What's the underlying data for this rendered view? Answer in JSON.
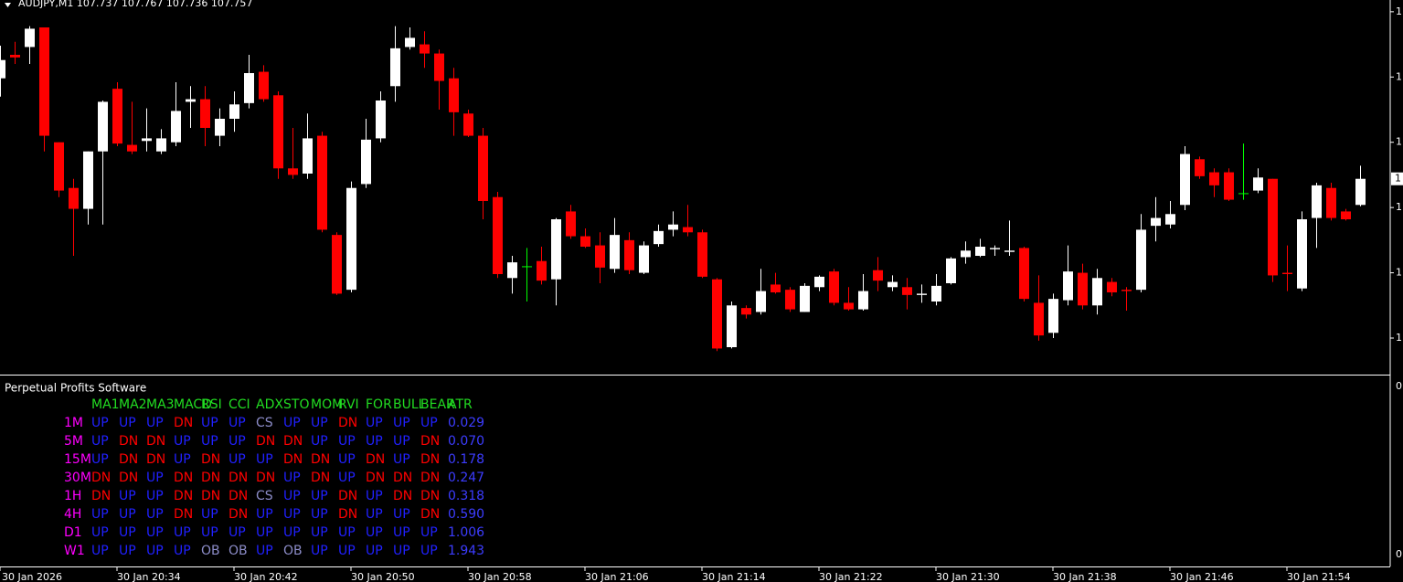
{
  "chart_data": {
    "type": "candlestick",
    "title": "AUDJPY,M1  107.737 107.767 107.736 107.757",
    "categories": [
      "30 Jan 2026",
      null,
      null,
      null,
      null,
      null,
      null,
      null,
      "30 Jan 20:34",
      null,
      null,
      null,
      null,
      null,
      null,
      null,
      "30 Jan 20:42",
      null,
      null,
      null,
      null,
      null,
      null,
      null,
      "30 Jan 20:50",
      null,
      null,
      null,
      null,
      null,
      null,
      null,
      "30 Jan 20:58",
      null,
      null,
      null,
      null,
      null,
      null,
      null,
      "30 Jan 21:06",
      null,
      null,
      null,
      null,
      null,
      null,
      null,
      "30 Jan 21:14",
      null,
      null,
      null,
      null,
      null,
      null,
      null,
      "30 Jan 21:22",
      null,
      null,
      null,
      null,
      null,
      null,
      null,
      "30 Jan 21:30",
      null,
      null,
      null,
      null,
      null,
      null,
      null,
      "30 Jan 21:38",
      null,
      null,
      null,
      null,
      null,
      null,
      null,
      "30 Jan 21:46",
      null,
      null,
      null,
      null,
      null,
      null,
      null,
      "30 Jan 21:54",
      null,
      null,
      null,
      null,
      null
    ],
    "open": [
      107.834,
      107.852,
      107.858,
      107.873,
      107.785,
      107.75,
      107.734,
      107.778,
      107.826,
      107.783,
      107.786,
      107.778,
      107.785,
      107.816,
      107.818,
      107.79,
      107.803,
      107.815,
      107.839,
      107.821,
      107.765,
      107.761,
      107.79,
      107.714,
      107.672,
      107.753,
      107.788,
      107.828,
      107.858,
      107.86,
      107.853,
      107.834,
      107.807,
      107.79,
      107.743,
      107.681,
      107.69,
      107.694,
      107.68,
      107.732,
      107.713,
      107.706,
      107.688,
      107.71,
      107.685,
      107.707,
      107.718,
      107.72,
      107.716,
      107.68,
      107.628,
      107.658,
      107.655,
      107.676,
      107.672,
      107.655,
      107.674,
      107.686,
      107.662,
      107.657,
      107.687,
      107.674,
      107.674,
      107.668,
      107.663,
      107.677,
      107.697,
      107.698,
      107.703,
      107.701,
      107.704,
      107.662,
      107.639,
      107.664,
      107.685,
      107.66,
      107.678,
      107.672,
      107.672,
      107.721,
      107.722,
      107.737,
      107.772,
      107.762,
      107.762,
      107.746,
      107.748,
      107.757,
      107.685,
      107.673,
      107.727,
      107.75,
      107.732,
      107.737
    ],
    "high": [
      107.859,
      107.862,
      107.874,
      107.873,
      107.785,
      107.757,
      107.778,
      107.817,
      107.831,
      107.816,
      107.811,
      107.795,
      107.831,
      107.828,
      107.828,
      107.811,
      107.824,
      107.852,
      107.844,
      107.824,
      107.796,
      107.807,
      107.793,
      107.716,
      107.755,
      107.803,
      107.824,
      107.874,
      107.873,
      107.87,
      107.856,
      107.842,
      107.81,
      107.796,
      107.747,
      107.698,
      107.704,
      107.705,
      107.727,
      107.737,
      107.719,
      107.716,
      107.727,
      107.716,
      107.709,
      107.722,
      107.732,
      107.737,
      107.718,
      107.681,
      107.663,
      107.66,
      107.688,
      107.685,
      107.674,
      107.677,
      107.683,
      107.688,
      107.674,
      107.684,
      107.697,
      107.683,
      107.681,
      107.676,
      107.684,
      107.697,
      107.709,
      107.711,
      107.706,
      107.725,
      107.705,
      107.683,
      107.669,
      107.706,
      107.692,
      107.688,
      107.681,
      107.674,
      107.73,
      107.743,
      107.74,
      107.782,
      107.774,
      107.765,
      107.765,
      107.784,
      107.765,
      107.757,
      107.706,
      107.732,
      107.754,
      107.754,
      107.734,
      107.767
    ],
    "low": [
      107.82,
      107.845,
      107.845,
      107.778,
      107.743,
      107.698,
      107.722,
      107.722,
      107.782,
      107.776,
      107.778,
      107.776,
      107.782,
      107.796,
      107.782,
      107.782,
      107.793,
      107.811,
      107.816,
      107.757,
      107.757,
      107.757,
      107.716,
      107.668,
      107.67,
      107.75,
      107.785,
      107.816,
      107.856,
      107.842,
      107.81,
      107.79,
      107.789,
      107.726,
      107.681,
      107.669,
      107.663,
      107.676,
      107.66,
      107.711,
      107.704,
      107.677,
      107.685,
      107.684,
      107.684,
      107.705,
      107.713,
      107.713,
      107.681,
      107.625,
      107.627,
      107.65,
      107.653,
      107.669,
      107.655,
      107.655,
      107.671,
      107.66,
      107.656,
      107.656,
      107.671,
      107.671,
      107.657,
      107.662,
      107.66,
      107.676,
      107.692,
      107.697,
      107.698,
      107.698,
      107.663,
      107.633,
      107.635,
      107.66,
      107.657,
      107.653,
      107.667,
      107.656,
      107.67,
      107.709,
      107.719,
      107.733,
      107.757,
      107.743,
      107.74,
      107.741,
      107.746,
      107.678,
      107.671,
      107.671,
      107.704,
      107.725,
      107.725,
      107.736
    ],
    "close": [
      107.848,
      107.85,
      107.872,
      107.79,
      107.748,
      107.734,
      107.778,
      107.816,
      107.784,
      107.778,
      107.788,
      107.788,
      107.809,
      107.818,
      107.796,
      107.803,
      107.814,
      107.838,
      107.818,
      107.765,
      107.76,
      107.788,
      107.718,
      107.669,
      107.75,
      107.787,
      107.817,
      107.857,
      107.865,
      107.853,
      107.832,
      107.808,
      107.79,
      107.74,
      107.684,
      107.693,
      107.69,
      107.679,
      107.726,
      107.713,
      107.705,
      107.689,
      107.714,
      107.687,
      107.706,
      107.717,
      107.722,
      107.716,
      107.682,
      107.627,
      107.66,
      107.653,
      107.671,
      107.67,
      107.657,
      107.675,
      107.682,
      107.662,
      107.657,
      107.671,
      107.679,
      107.678,
      107.668,
      107.669,
      107.675,
      107.696,
      107.702,
      107.705,
      107.704,
      107.702,
      107.665,
      107.637,
      107.665,
      107.686,
      107.66,
      107.681,
      107.67,
      107.671,
      107.718,
      107.727,
      107.73,
      107.776,
      107.759,
      107.752,
      107.741,
      107.746,
      107.758,
      107.683,
      107.684,
      107.726,
      107.752,
      107.727,
      107.726,
      107.757
    ],
    "colors": {
      "bull": "#ffffff",
      "bear": "#ff0000",
      "doji": "#00ff00"
    },
    "ylim": [
      107.607,
      107.894
    ],
    "yticks": [
      {
        "value": 107.885,
        "label": "1"
      },
      {
        "value": 107.835,
        "label": "1"
      },
      {
        "value": 107.785,
        "label": "1"
      },
      {
        "value": 107.735,
        "label": "1"
      },
      {
        "value": 107.685,
        "label": "1"
      },
      {
        "value": 107.635,
        "label": "1"
      }
    ],
    "last_price": {
      "value": 107.757,
      "label": "1"
    }
  },
  "panel": {
    "title": "Perpetual Profits Software",
    "axis_labels": [
      "0",
      "0"
    ],
    "columns": [
      "MA1",
      "MA2",
      "MA3",
      "MACD",
      "RSI",
      "CCI",
      "ADX",
      "STO",
      "MOM",
      "RVI",
      "FOR",
      "BULL",
      "BEAR",
      "ATR"
    ],
    "rows": [
      {
        "label": "1M",
        "cells": [
          "UP",
          "UP",
          "UP",
          "DN",
          "UP",
          "UP",
          "CS",
          "UP",
          "UP",
          "DN",
          "UP",
          "UP",
          "UP",
          "0.029"
        ]
      },
      {
        "label": "5M",
        "cells": [
          "UP",
          "DN",
          "DN",
          "UP",
          "UP",
          "UP",
          "DN",
          "DN",
          "UP",
          "UP",
          "UP",
          "UP",
          "DN",
          "0.070"
        ]
      },
      {
        "label": "15M",
        "cells": [
          "UP",
          "DN",
          "DN",
          "UP",
          "DN",
          "UP",
          "UP",
          "DN",
          "DN",
          "UP",
          "DN",
          "UP",
          "DN",
          "0.178"
        ]
      },
      {
        "label": "30M",
        "cells": [
          "DN",
          "DN",
          "UP",
          "DN",
          "DN",
          "DN",
          "DN",
          "UP",
          "DN",
          "UP",
          "DN",
          "DN",
          "DN",
          "0.247"
        ]
      },
      {
        "label": "1H",
        "cells": [
          "DN",
          "UP",
          "UP",
          "DN",
          "DN",
          "DN",
          "CS",
          "UP",
          "UP",
          "DN",
          "UP",
          "DN",
          "DN",
          "0.318"
        ]
      },
      {
        "label": "4H",
        "cells": [
          "UP",
          "UP",
          "UP",
          "DN",
          "UP",
          "DN",
          "UP",
          "UP",
          "UP",
          "DN",
          "UP",
          "UP",
          "DN",
          "0.590"
        ]
      },
      {
        "label": "D1",
        "cells": [
          "UP",
          "UP",
          "UP",
          "UP",
          "UP",
          "UP",
          "UP",
          "UP",
          "UP",
          "UP",
          "UP",
          "UP",
          "UP",
          "1.006"
        ]
      },
      {
        "label": "W1",
        "cells": [
          "UP",
          "UP",
          "UP",
          "UP",
          "OB",
          "OB",
          "UP",
          "OB",
          "UP",
          "UP",
          "UP",
          "UP",
          "UP",
          "1.943"
        ]
      }
    ],
    "colors": {
      "header": "#22dd22",
      "label": "#ff00ff",
      "UP": "#2020ff",
      "DN": "#ff0000",
      "CS": "#8c8cc8",
      "OB": "#8c8cc8",
      "value": "#3c3cff"
    }
  }
}
